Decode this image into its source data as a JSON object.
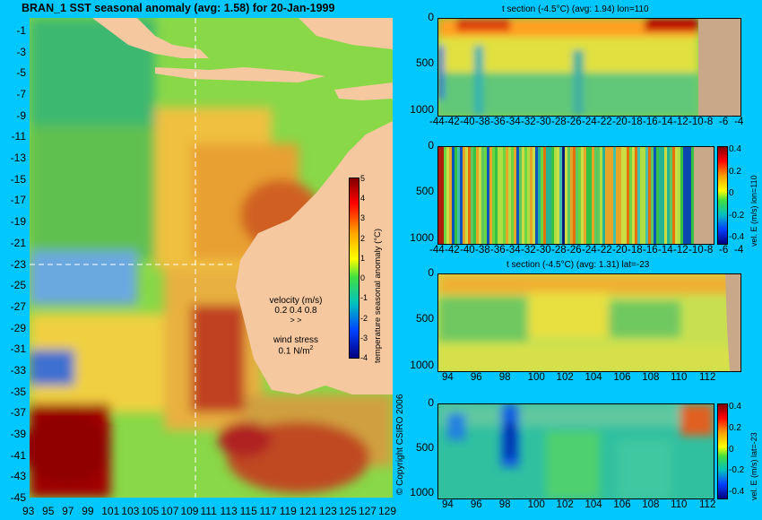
{
  "main_title": "BRAN_1 SST seasonal anomaly (avg: 1.58) for 20-Jan-1999",
  "copyright": "© Copyright CSIRO 2006",
  "colors": {
    "background": "#00c8ff",
    "land": "#f5c8a0",
    "land_section": "#c8a888"
  },
  "map": {
    "lat_ticks": [
      "-1",
      "-3",
      "-5",
      "-7",
      "-9",
      "-11",
      "-13",
      "-15",
      "-17",
      "-19",
      "-21",
      "-23",
      "-25",
      "-27",
      "-29",
      "-31",
      "-33",
      "-35",
      "-37",
      "-39",
      "-41",
      "-43",
      "-45"
    ],
    "lon_ticks": [
      "93",
      "95",
      "97",
      "99",
      "101",
      "103",
      "105",
      "107",
      "109",
      "111",
      "113",
      "115",
      "117",
      "119",
      "121",
      "123",
      "125",
      "127",
      "129"
    ],
    "colorbar_ticks": [
      "5",
      "4",
      "3",
      "2",
      "1",
      "0",
      "-1",
      "-2",
      "-3",
      "-4"
    ],
    "colorbar_label": "temperature seasonal anomaly (°C)",
    "velocity_label": "velocity (m/s)",
    "velocity_scale": "0.2 0.4 0.8",
    "wind_label": "wind stress",
    "wind_value": "0.1 N/m",
    "wind_unit_sup": "2"
  },
  "chart_data": [
    {
      "type": "heatmap",
      "title": "t section (-4.5°C) (avg: 1.94) lon=110",
      "x_ticks": [
        "-44",
        "-42",
        "-40",
        "-38",
        "-36",
        "-34",
        "-32",
        "-30",
        "-28",
        "-26",
        "-24",
        "-22",
        "-20",
        "-18",
        "-16",
        "-14",
        "-12",
        "-10",
        "-8",
        "-6",
        "-4"
      ],
      "y_ticks": [
        "0",
        "500",
        "1000"
      ],
      "ylim": [
        1050,
        0
      ]
    },
    {
      "type": "heatmap",
      "title": "",
      "x_ticks": [
        "-44",
        "-42",
        "-40",
        "-38",
        "-36",
        "-34",
        "-32",
        "-30",
        "-28",
        "-26",
        "-24",
        "-22",
        "-20",
        "-18",
        "-16",
        "-14",
        "-12",
        "-10",
        "-8",
        "-6",
        "-4"
      ],
      "y_ticks": [
        "0",
        "500",
        "1000"
      ],
      "colorbar_ticks": [
        "0.4",
        "0.2",
        "0",
        "-0.2",
        "-0.4"
      ],
      "colorbar_label": "vel. E (m/s) lon=110"
    },
    {
      "type": "heatmap",
      "title": "t section (-4.5°C) (avg: 1.31) lat=-23",
      "x_ticks": [
        "94",
        "96",
        "98",
        "100",
        "102",
        "104",
        "106",
        "108",
        "110",
        "112"
      ],
      "y_ticks": [
        "0",
        "500",
        "1000"
      ]
    },
    {
      "type": "heatmap",
      "title": "",
      "x_ticks": [
        "94",
        "96",
        "98",
        "100",
        "102",
        "104",
        "106",
        "108",
        "110",
        "112"
      ],
      "y_ticks": [
        "0",
        "500",
        "1000"
      ],
      "colorbar_ticks": [
        "0.4",
        "0.2",
        "0",
        "-0.2",
        "-0.4"
      ],
      "colorbar_label": "vel. E (m/s) lat=-23"
    }
  ]
}
